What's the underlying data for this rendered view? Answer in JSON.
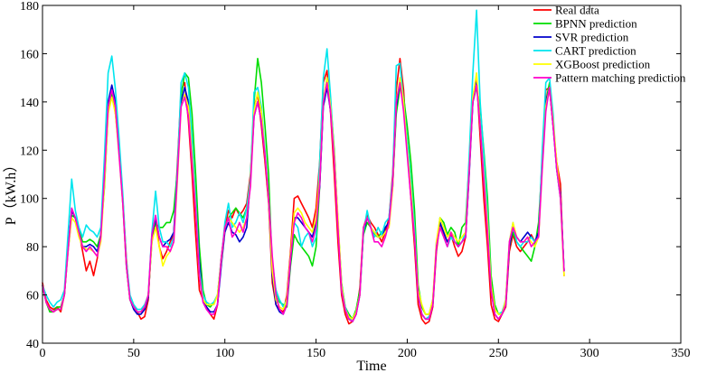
{
  "chart_data": {
    "type": "line",
    "xlabel": "Time",
    "ylabel": "P（kW.h）",
    "xlim": [
      0,
      350
    ],
    "ylim": [
      40,
      180
    ],
    "xticks": [
      0,
      50,
      100,
      150,
      200,
      250,
      300,
      350
    ],
    "yticks": [
      40,
      60,
      80,
      100,
      120,
      140,
      160,
      180
    ],
    "x_start": 0,
    "x_step": 2,
    "grid": false,
    "legend_position": "top-right",
    "series": [
      {
        "name": "Real data",
        "color": "#ff0000",
        "values": [
          65,
          58,
          55,
          54,
          55,
          53,
          60,
          80,
          95,
          92,
          86,
          78,
          70,
          74,
          68,
          75,
          85,
          110,
          140,
          145,
          135,
          120,
          100,
          75,
          58,
          55,
          53,
          50,
          51,
          58,
          85,
          92,
          80,
          75,
          78,
          82,
          85,
          115,
          145,
          148,
          132,
          110,
          85,
          62,
          58,
          55,
          52,
          50,
          56,
          75,
          88,
          95,
          92,
          96,
          93,
          95,
          98,
          110,
          138,
          143,
          130,
          115,
          98,
          65,
          56,
          54,
          53,
          60,
          78,
          100,
          101,
          98,
          95,
          92,
          88,
          96,
          115,
          148,
          153,
          135,
          110,
          82,
          60,
          52,
          48,
          49,
          52,
          63,
          88,
          93,
          90,
          88,
          85,
          82,
          86,
          92,
          110,
          145,
          158,
          145,
          120,
          100,
          80,
          56,
          50,
          48,
          49,
          55,
          78,
          90,
          85,
          82,
          85,
          80,
          76,
          78,
          84,
          112,
          142,
          150,
          125,
          100,
          80,
          56,
          50,
          49,
          52,
          55,
          78,
          85,
          80,
          78,
          80,
          82,
          85,
          82,
          84,
          118,
          145,
          146,
          130,
          115,
          106,
          68
        ]
      },
      {
        "name": "BPNN prediction",
        "color": "#00dd00",
        "values": [
          64,
          57,
          53,
          53,
          55,
          55,
          60,
          78,
          93,
          92,
          87,
          82,
          82,
          83,
          82,
          80,
          85,
          105,
          136,
          143,
          138,
          120,
          98,
          72,
          58,
          55,
          53,
          53,
          54,
          60,
          82,
          90,
          88,
          88,
          90,
          90,
          95,
          112,
          142,
          152,
          150,
          135,
          110,
          80,
          62,
          56,
          55,
          57,
          60,
          75,
          88,
          92,
          94,
          96,
          94,
          92,
          96,
          108,
          140,
          158,
          148,
          130,
          110,
          70,
          62,
          57,
          56,
          55,
          72,
          85,
          82,
          80,
          78,
          76,
          72,
          80,
          105,
          140,
          150,
          140,
          120,
          90,
          65,
          55,
          52,
          50,
          54,
          62,
          85,
          90,
          88,
          85,
          84,
          86,
          88,
          90,
          105,
          135,
          146,
          142,
          130,
          115,
          95,
          64,
          55,
          52,
          52,
          58,
          80,
          92,
          90,
          85,
          88,
          86,
          80,
          88,
          90,
          115,
          140,
          146,
          138,
          120,
          100,
          68,
          56,
          52,
          52,
          58,
          80,
          86,
          82,
          80,
          78,
          76,
          74,
          80,
          90,
          115,
          140,
          148,
          132,
          112,
          100,
          70
        ]
      },
      {
        "name": "SVR prediction",
        "color": "#0000cc",
        "values": [
          64,
          57,
          54,
          53,
          54,
          54,
          60,
          79,
          95,
          92,
          85,
          80,
          80,
          81,
          80,
          78,
          84,
          110,
          140,
          147,
          140,
          122,
          100,
          72,
          58,
          54,
          52,
          52,
          54,
          59,
          84,
          92,
          84,
          80,
          82,
          83,
          86,
          112,
          140,
          146,
          140,
          122,
          100,
          74,
          58,
          55,
          53,
          53,
          56,
          72,
          86,
          90,
          86,
          85,
          82,
          84,
          88,
          108,
          134,
          140,
          132,
          118,
          100,
          68,
          56,
          53,
          52,
          56,
          74,
          92,
          92,
          90,
          88,
          86,
          84,
          90,
          105,
          138,
          146,
          136,
          118,
          90,
          62,
          54,
          50,
          49,
          52,
          60,
          86,
          92,
          88,
          86,
          84,
          84,
          88,
          90,
          105,
          138,
          148,
          140,
          122,
          102,
          84,
          60,
          52,
          50,
          50,
          56,
          80,
          90,
          86,
          82,
          84,
          82,
          80,
          82,
          84,
          110,
          140,
          148,
          130,
          108,
          88,
          62,
          52,
          50,
          52,
          56,
          80,
          88,
          84,
          82,
          84,
          86,
          84,
          82,
          86,
          115,
          140,
          146,
          130,
          112,
          102,
          70
        ]
      },
      {
        "name": "CART prediction",
        "color": "#00e5ee",
        "values": [
          64,
          60,
          57,
          55,
          57,
          58,
          62,
          85,
          108,
          95,
          88,
          84,
          89,
          87,
          86,
          84,
          88,
          118,
          152,
          159,
          145,
          125,
          102,
          74,
          60,
          56,
          54,
          54,
          56,
          60,
          86,
          103,
          88,
          82,
          82,
          80,
          84,
          112,
          148,
          152,
          146,
          125,
          100,
          70,
          60,
          57,
          56,
          57,
          60,
          74,
          90,
          98,
          88,
          90,
          94,
          90,
          96,
          108,
          144,
          146,
          138,
          120,
          100,
          74,
          62,
          58,
          55,
          58,
          76,
          90,
          88,
          80,
          84,
          86,
          80,
          84,
          115,
          150,
          162,
          142,
          118,
          90,
          64,
          55,
          51,
          49,
          53,
          60,
          86,
          95,
          88,
          84,
          88,
          85,
          90,
          92,
          108,
          155,
          156,
          140,
          124,
          108,
          88,
          60,
          52,
          50,
          51,
          56,
          82,
          88,
          84,
          80,
          84,
          82,
          80,
          82,
          86,
          118,
          152,
          178,
          140,
          118,
          94,
          64,
          54,
          52,
          53,
          58,
          82,
          90,
          82,
          80,
          82,
          82,
          84,
          82,
          84,
          120,
          148,
          150,
          135,
          112,
          100,
          70
        ]
      },
      {
        "name": "XGBoost prediction",
        "color": "#ffff00",
        "values": [
          64,
          57,
          54,
          53,
          54,
          54,
          60,
          78,
          92,
          90,
          84,
          80,
          79,
          79,
          78,
          76,
          82,
          106,
          135,
          142,
          135,
          118,
          98,
          72,
          58,
          55,
          53,
          53,
          55,
          60,
          82,
          88,
          80,
          72,
          76,
          78,
          82,
          108,
          138,
          143,
          138,
          118,
          96,
          68,
          58,
          56,
          56,
          56,
          60,
          74,
          88,
          92,
          90,
          88,
          86,
          88,
          92,
          106,
          136,
          144,
          136,
          118,
          100,
          70,
          58,
          55,
          54,
          58,
          76,
          94,
          96,
          94,
          90,
          88,
          86,
          92,
          108,
          140,
          150,
          138,
          118,
          92,
          64,
          54,
          51,
          50,
          53,
          60,
          88,
          92,
          88,
          86,
          84,
          84,
          86,
          88,
          104,
          140,
          150,
          140,
          120,
          104,
          84,
          62,
          56,
          52,
          52,
          58,
          82,
          92,
          88,
          84,
          86,
          84,
          82,
          84,
          86,
          112,
          142,
          152,
          130,
          110,
          90,
          64,
          54,
          52,
          52,
          58,
          82,
          90,
          84,
          82,
          82,
          84,
          82,
          80,
          84,
          112,
          138,
          146,
          132,
          115,
          100,
          68
        ]
      },
      {
        "name": "Pattern matching prediction",
        "color": "#ff00cc",
        "values": [
          64,
          57,
          54,
          53,
          54,
          54,
          60,
          78,
          96,
          92,
          86,
          80,
          78,
          80,
          78,
          76,
          84,
          110,
          138,
          145,
          138,
          118,
          98,
          72,
          58,
          55,
          53,
          53,
          55,
          60,
          85,
          93,
          84,
          80,
          80,
          78,
          82,
          110,
          138,
          142,
          134,
          115,
          95,
          68,
          57,
          54,
          52,
          52,
          56,
          75,
          88,
          92,
          84,
          86,
          90,
          86,
          92,
          105,
          134,
          140,
          132,
          118,
          100,
          76,
          60,
          54,
          52,
          56,
          75,
          90,
          94,
          92,
          88,
          86,
          82,
          88,
          106,
          140,
          148,
          136,
          116,
          88,
          62,
          54,
          50,
          49,
          52,
          60,
          88,
          92,
          88,
          82,
          82,
          80,
          84,
          90,
          106,
          140,
          148,
          136,
          118,
          100,
          84,
          60,
          52,
          50,
          50,
          56,
          80,
          88,
          84,
          80,
          86,
          82,
          80,
          82,
          84,
          112,
          140,
          147,
          130,
          108,
          86,
          62,
          52,
          50,
          52,
          56,
          82,
          88,
          84,
          82,
          82,
          84,
          80,
          82,
          84,
          112,
          136,
          146,
          130,
          112,
          100,
          70
        ]
      }
    ]
  }
}
